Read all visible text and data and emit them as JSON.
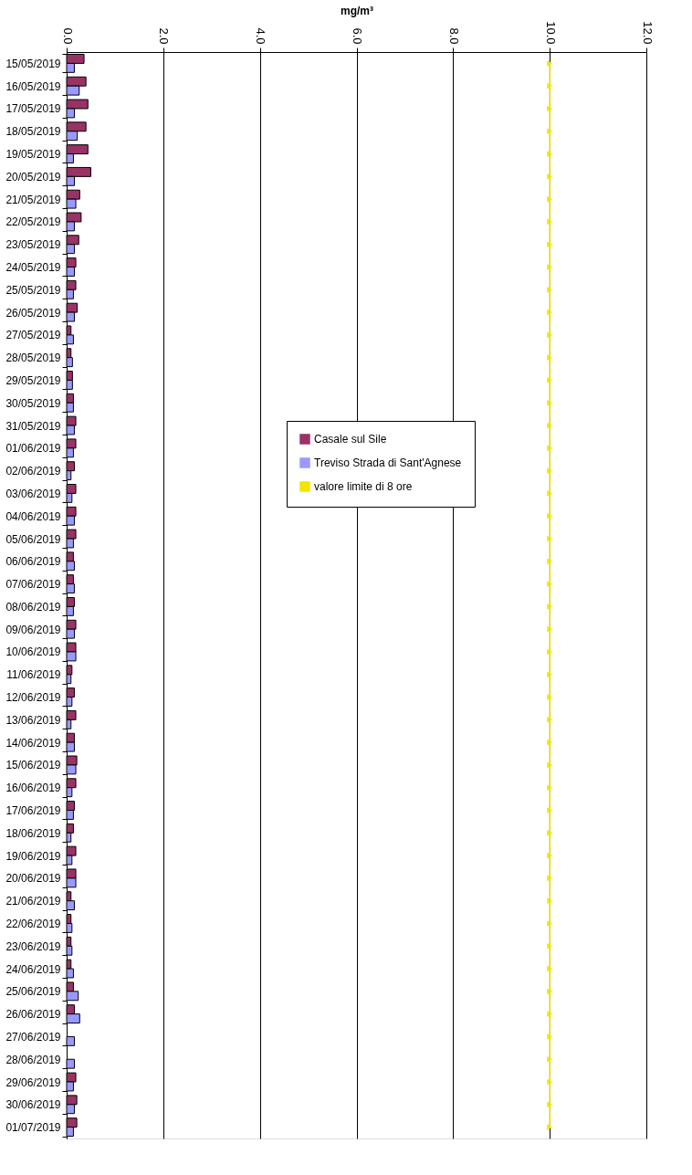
{
  "chart_data": {
    "type": "bar",
    "orientation": "horizontal",
    "xlabel": "mg/m³",
    "categories": [
      "15/05/2019",
      "16/05/2019",
      "17/05/2019",
      "18/05/2019",
      "19/05/2019",
      "20/05/2019",
      "21/05/2019",
      "22/05/2019",
      "23/05/2019",
      "24/05/2019",
      "25/05/2019",
      "26/05/2019",
      "27/05/2019",
      "28/05/2019",
      "29/05/2019",
      "30/05/2019",
      "31/05/2019",
      "01/06/2019",
      "02/06/2019",
      "03/06/2019",
      "04/06/2019",
      "05/06/2019",
      "06/06/2019",
      "07/06/2019",
      "08/06/2019",
      "09/06/2019",
      "10/06/2019",
      "11/06/2019",
      "12/06/2019",
      "13/06/2019",
      "14/06/2019",
      "15/06/2019",
      "16/06/2019",
      "17/06/2019",
      "18/06/2019",
      "19/06/2019",
      "20/06/2019",
      "21/06/2019",
      "22/06/2019",
      "23/06/2019",
      "24/06/2019",
      "25/06/2019",
      "26/06/2019",
      "27/06/2019",
      "28/06/2019",
      "29/06/2019",
      "30/06/2019",
      "01/07/2019"
    ],
    "series": [
      {
        "name": "Casale sul Sile",
        "color": "#993366",
        "values": [
          0.36,
          0.4,
          0.44,
          0.4,
          0.44,
          0.5,
          0.27,
          0.3,
          0.25,
          0.19,
          0.19,
          0.22,
          0.09,
          0.09,
          0.12,
          0.14,
          0.19,
          0.19,
          0.16,
          0.19,
          0.19,
          0.19,
          0.14,
          0.14,
          0.16,
          0.19,
          0.19,
          0.11,
          0.16,
          0.19,
          0.16,
          0.21,
          0.19,
          0.16,
          0.14,
          0.19,
          0.19,
          0.09,
          0.09,
          0.09,
          0.09,
          0.14,
          0.16,
          null,
          null,
          0.19,
          0.21,
          0.21
        ]
      },
      {
        "name": "Treviso Strada di Sant'Agnese",
        "color": "#9999ff",
        "values": [
          0.16,
          0.26,
          0.16,
          0.22,
          0.14,
          0.16,
          0.19,
          0.16,
          0.16,
          0.16,
          0.14,
          0.16,
          0.14,
          0.12,
          0.12,
          0.14,
          0.16,
          0.14,
          0.09,
          0.11,
          0.16,
          0.14,
          0.16,
          0.16,
          0.14,
          0.16,
          0.19,
          0.09,
          0.11,
          0.09,
          0.16,
          0.19,
          0.11,
          0.14,
          0.09,
          0.11,
          0.19,
          0.16,
          0.11,
          0.11,
          0.14,
          0.24,
          0.27,
          0.16,
          0.16,
          0.14,
          0.16,
          0.14
        ]
      },
      {
        "name": "valore limite di 8 ore",
        "type": "line",
        "color": "#f2e600",
        "marker": "triangle",
        "values": [
          10,
          10,
          10,
          10,
          10,
          10,
          10,
          10,
          10,
          10,
          10,
          10,
          10,
          10,
          10,
          10,
          10,
          10,
          10,
          10,
          10,
          10,
          10,
          10,
          10,
          10,
          10,
          10,
          10,
          10,
          10,
          10,
          10,
          10,
          10,
          10,
          10,
          10,
          10,
          10,
          10,
          10,
          10,
          10,
          10,
          10,
          10,
          10
        ]
      }
    ],
    "xlim": [
      0,
      12
    ],
    "xticks": [
      {
        "value": 0,
        "label": "0.0"
      },
      {
        "value": 2,
        "label": "2.0"
      },
      {
        "value": 4,
        "label": "4.0"
      },
      {
        "value": 6,
        "label": "6.0"
      },
      {
        "value": 8,
        "label": "8.0"
      },
      {
        "value": 10,
        "label": "10.0"
      },
      {
        "value": 12,
        "label": "12.0"
      }
    ],
    "grid": "x",
    "legend": "right"
  }
}
